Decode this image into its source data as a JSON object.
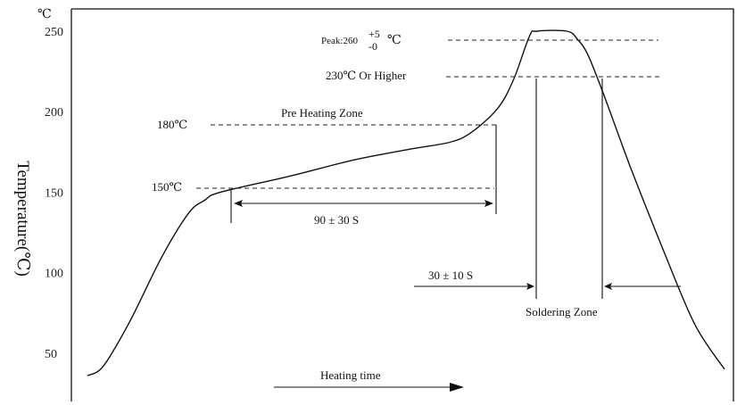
{
  "chart_data": {
    "type": "line",
    "title": "",
    "xlabel": "Heating time",
    "ylabel": "Temperature(℃)",
    "y_unit_label": "℃",
    "ylim": [
      30,
      258
    ],
    "yticks": [
      50,
      100,
      150,
      200,
      250
    ],
    "grid": false,
    "series": [
      {
        "points": [
          [
            0,
            36
          ],
          [
            15,
            42
          ],
          [
            40,
            70
          ],
          [
            70,
            110
          ],
          [
            95,
            137
          ],
          [
            110,
            145
          ],
          [
            125,
            150
          ],
          [
            190,
            160
          ],
          [
            250,
            170
          ],
          [
            305,
            177
          ],
          [
            340,
            181
          ],
          [
            360,
            187
          ],
          [
            385,
            202
          ],
          [
            400,
            220
          ],
          [
            415,
            247
          ],
          [
            422,
            250
          ],
          [
            450,
            250
          ],
          [
            460,
            245
          ],
          [
            470,
            235
          ],
          [
            485,
            210
          ],
          [
            510,
            165
          ],
          [
            540,
            115
          ],
          [
            570,
            68
          ],
          [
            598,
            40
          ]
        ]
      }
    ],
    "annotations": {
      "peak_label": "Peak:260",
      "peak_tol_plus": "+5",
      "peak_tol_minus": "-0",
      "peak_unit": "℃",
      "higher_label": "230℃ Or Higher",
      "preheat_zone": "Pre Heating Zone",
      "t180": "180℃",
      "t150": "150℃",
      "preheat_time": "90 ± 30 S",
      "soldering_time": "30 ± 10 S",
      "soldering_zone": "Soldering Zone"
    }
  }
}
